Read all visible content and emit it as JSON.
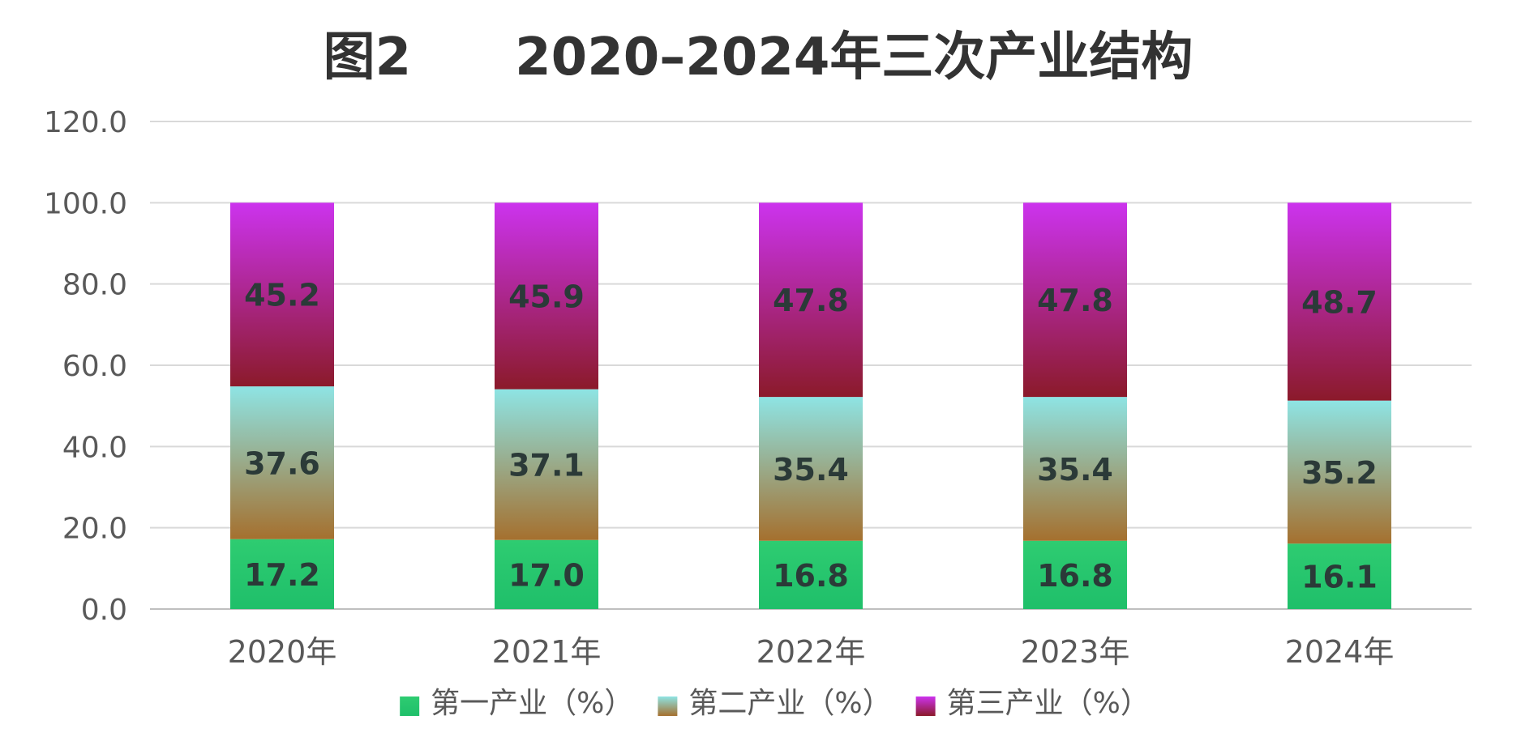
{
  "chart_data": {
    "type": "bar",
    "stacked": true,
    "title": "图2　　2020–2024年三次产业结构",
    "categories": [
      "2020年",
      "2021年",
      "2022年",
      "2023年",
      "2024年"
    ],
    "series": [
      {
        "name": "第一产业（%）",
        "values": [
          17.2,
          17.0,
          16.8,
          16.8,
          16.1
        ],
        "color_top": "#2ecc71",
        "color_bottom": "#1fbf6a"
      },
      {
        "name": "第二产业（%）",
        "values": [
          37.6,
          37.1,
          35.4,
          35.4,
          35.2
        ],
        "color_top": "#8ee4e4",
        "color_bottom": "#a5702e"
      },
      {
        "name": "第三产业（%）",
        "values": [
          45.2,
          45.9,
          47.8,
          47.8,
          48.7
        ],
        "color_top": "#cc33ee",
        "color_bottom": "#8b1a2a"
      }
    ],
    "ylim": [
      0,
      120
    ],
    "yticks": [
      0,
      20,
      40,
      60,
      80,
      100,
      120
    ],
    "ytick_labels": [
      "0.0",
      "20.0",
      "40.0",
      "60.0",
      "80.0",
      "100.0",
      "120.0"
    ],
    "xlabel": "",
    "ylabel": "",
    "grid": true,
    "legend_position": "bottom"
  }
}
